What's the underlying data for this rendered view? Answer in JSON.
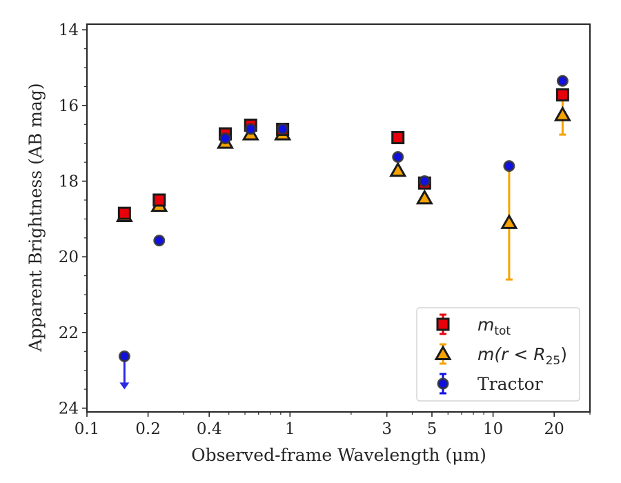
{
  "chart_data": {
    "type": "scatter",
    "xlabel": "Observed-frame Wavelength (μm)",
    "ylabel": "Apparent Brightness (AB mag)",
    "xscale": "log",
    "xlim": [
      0.1,
      30
    ],
    "ylim": [
      24.1,
      13.85
    ],
    "y_inverted": true,
    "x_ticks": [
      0.1,
      0.2,
      0.4,
      1,
      3,
      5,
      10,
      20
    ],
    "x_tick_labels": [
      "0.1",
      "0.2",
      "0.4",
      "1",
      "3",
      "5",
      "10",
      "20"
    ],
    "y_ticks": [
      14,
      16,
      18,
      20,
      22,
      24
    ],
    "y_tick_labels": [
      "14",
      "16",
      "18",
      "20",
      "22",
      "24"
    ],
    "legend_position": "bottom-right",
    "grid": false,
    "series": [
      {
        "name": "m_tot",
        "legend_label": "m",
        "legend_sub": "tot",
        "marker": "square",
        "color": "#e8000b",
        "edge_color": "#1a1a1a",
        "points": [
          {
            "x": 0.153,
            "y": 18.85,
            "err": 0.08
          },
          {
            "x": 0.227,
            "y": 18.5,
            "err": 0.06
          },
          {
            "x": 0.48,
            "y": 16.75,
            "err": 0.06
          },
          {
            "x": 0.64,
            "y": 16.52,
            "err": 0.05
          },
          {
            "x": 0.92,
            "y": 16.63,
            "err": 0.05
          },
          {
            "x": 3.4,
            "y": 16.85,
            "err": 0.04
          },
          {
            "x": 4.6,
            "y": 18.05,
            "err": 0.05
          },
          {
            "x": 22.0,
            "y": 15.72,
            "err": 0.05
          }
        ]
      },
      {
        "name": "m(r < R25)",
        "legend_label": "m(r < R",
        "legend_sub": "25",
        "legend_suffix": ")",
        "marker": "triangle",
        "color": "#f5a300",
        "edge_color": "#1a1a1a",
        "points": [
          {
            "x": 0.153,
            "y": 18.92,
            "err": 0.06
          },
          {
            "x": 0.227,
            "y": 18.65,
            "err": 0.06
          },
          {
            "x": 0.48,
            "y": 16.98,
            "err": 0.05
          },
          {
            "x": 0.64,
            "y": 16.76,
            "err": 0.05
          },
          {
            "x": 0.92,
            "y": 16.76,
            "err": 0.05
          },
          {
            "x": 3.4,
            "y": 17.72,
            "err": 0.05
          },
          {
            "x": 4.6,
            "y": 18.45,
            "err": 0.05
          },
          {
            "x": 12.0,
            "y": 19.1,
            "err": 1.5
          },
          {
            "x": 22.0,
            "y": 16.25,
            "err": 0.52
          }
        ]
      },
      {
        "name": "Tractor",
        "legend_label": "Tractor",
        "marker": "circle",
        "color": "#1010e0",
        "edge_color": "#333333",
        "points": [
          {
            "x": 0.153,
            "y": 22.63,
            "err": 0.0,
            "upper_limit": true
          },
          {
            "x": 0.227,
            "y": 19.57,
            "err": 0.05
          },
          {
            "x": 0.48,
            "y": 16.87,
            "err": 0.06
          },
          {
            "x": 0.64,
            "y": 16.62,
            "err": 0.06
          },
          {
            "x": 0.92,
            "y": 16.62,
            "err": 0.06
          },
          {
            "x": 3.4,
            "y": 17.36,
            "err": 0.05
          },
          {
            "x": 4.6,
            "y": 18.0,
            "err": 0.05
          },
          {
            "x": 12.0,
            "y": 17.6,
            "err": 0.05
          },
          {
            "x": 22.0,
            "y": 15.35,
            "err": 0.05
          }
        ]
      }
    ]
  }
}
